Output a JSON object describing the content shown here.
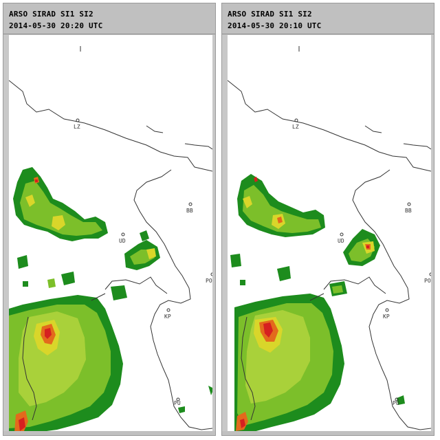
{
  "panels": [
    {
      "id": "left",
      "title": "ARSO SIRAD SI1 SI2",
      "timestamp": "2014-05-30 20:20 UTC",
      "places": [
        {
          "key": "LZ",
          "label": "LZ"
        },
        {
          "key": "UD",
          "label": "UD"
        },
        {
          "key": "BB",
          "label": "BB"
        },
        {
          "key": "PO",
          "label": "PO"
        },
        {
          "key": "KP",
          "label": "KP"
        },
        {
          "key": "PU",
          "label": "PU"
        }
      ]
    },
    {
      "id": "right",
      "title": "ARSO SIRAD SI1 SI2",
      "timestamp": "2014-05-30 20:10 UTC",
      "places": [
        {
          "key": "LZ",
          "label": "LZ"
        },
        {
          "key": "UD",
          "label": "UD"
        },
        {
          "key": "BB",
          "label": "BB"
        },
        {
          "key": "PO",
          "label": "PO"
        },
        {
          "key": "KP",
          "label": "KP"
        },
        {
          "key": "PU",
          "label": "PU"
        }
      ]
    }
  ],
  "colors": {
    "coast": "#333333",
    "rain_light": "#1d8c1d",
    "rain_mid": "#7cbf2a",
    "rain_strong": "#d9d62a",
    "rain_heavy": "#e36a1c",
    "rain_max": "#d62020"
  }
}
